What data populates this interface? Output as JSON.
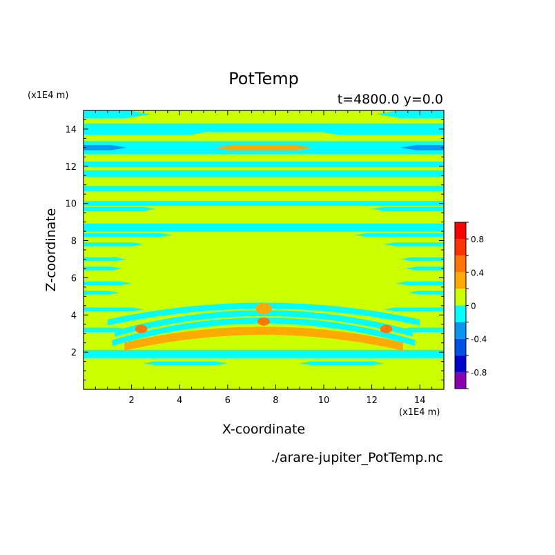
{
  "chart_data": {
    "type": "heatmap",
    "title": "PotTemp",
    "subtitle": "t=4800.0 y=0.0",
    "xlabel": "X-coordinate",
    "ylabel": "Z-coordinate",
    "x_unit": "(x1E4 m)",
    "y_unit": "(x1E4 m)",
    "footer": "./arare-jupiter_PotTemp.nc",
    "xlim": [
      0,
      15
    ],
    "ylim": [
      0,
      15
    ],
    "xticks": [
      2,
      4,
      6,
      8,
      10,
      12,
      14
    ],
    "yticks": [
      2,
      4,
      6,
      8,
      10,
      12,
      14
    ],
    "colorbar": {
      "levels": [
        -1.0,
        -0.8,
        -0.6,
        -0.4,
        -0.2,
        0.0,
        0.2,
        0.4,
        0.6,
        0.8,
        1.0
      ],
      "colors": [
        "#8800b0",
        "#0000c8",
        "#0050e6",
        "#0a96f0",
        "#00ffff",
        "#ccff00",
        "#ffaa00",
        "#ff7700",
        "#ff3300",
        "#ff0000",
        "#ffb0b0"
      ],
      "tick_labels": [
        "-0.8",
        "-0.4",
        "0",
        "0.4",
        "0.8"
      ],
      "tick_values": [
        -0.8,
        -0.4,
        0.0,
        0.4,
        0.8
      ]
    },
    "background_level": 0.0,
    "bands": [
      {
        "z": 14.8,
        "hw": 0.22,
        "v": -0.1,
        "xr": [
          [
            0,
            2.8
          ],
          [
            12.2,
            15
          ]
        ]
      },
      {
        "z": 14.0,
        "hw": 0.3,
        "v": -0.1,
        "xr": [
          [
            0,
            15
          ]
        ]
      },
      {
        "z": 13.6,
        "hw": 0.25,
        "v": 0.05,
        "xr": [
          [
            4,
            11
          ]
        ]
      },
      {
        "z": 13.0,
        "hw": 0.35,
        "v": -0.1,
        "xr": [
          [
            0,
            15
          ]
        ]
      },
      {
        "z": 13.0,
        "hw": 0.14,
        "v": -0.35,
        "xr": [
          [
            0,
            1.8
          ],
          [
            13.2,
            15
          ]
        ]
      },
      {
        "z": 13.0,
        "hw": 0.14,
        "v": 0.3,
        "xr": [
          [
            5.5,
            9.5
          ]
        ]
      },
      {
        "z": 12.1,
        "hw": 0.15,
        "v": -0.1,
        "xr": [
          [
            0,
            15
          ]
        ]
      },
      {
        "z": 11.6,
        "hw": 0.18,
        "v": -0.1,
        "xr": [
          [
            0,
            15
          ]
        ]
      },
      {
        "z": 10.8,
        "hw": 0.14,
        "v": -0.1,
        "xr": [
          [
            0,
            15
          ]
        ]
      },
      {
        "z": 10.0,
        "hw": 0.13,
        "v": -0.1,
        "xr": [
          [
            0,
            15
          ]
        ]
      },
      {
        "z": 9.7,
        "hw": 0.12,
        "v": -0.1,
        "xr": [
          [
            0,
            3
          ],
          [
            12,
            15
          ]
        ]
      },
      {
        "z": 8.7,
        "hw": 0.22,
        "v": -0.1,
        "xr": [
          [
            0,
            15
          ]
        ]
      },
      {
        "z": 8.3,
        "hw": 0.1,
        "v": -0.1,
        "xr": [
          [
            0,
            3.7
          ],
          [
            11.3,
            15
          ]
        ]
      },
      {
        "z": 7.8,
        "hw": 0.1,
        "v": -0.1,
        "xr": [
          [
            0,
            2.5
          ],
          [
            12.5,
            15
          ]
        ]
      },
      {
        "z": 7.0,
        "hw": 0.1,
        "v": -0.1,
        "xr": [
          [
            0,
            1.8
          ],
          [
            13.2,
            15
          ]
        ]
      },
      {
        "z": 6.5,
        "hw": 0.1,
        "v": -0.1,
        "xr": [
          [
            0,
            1.6
          ],
          [
            13.4,
            15
          ]
        ]
      },
      {
        "z": 5.7,
        "hw": 0.1,
        "v": -0.1,
        "xr": [
          [
            0,
            2
          ],
          [
            13,
            15
          ]
        ]
      },
      {
        "z": 5.2,
        "hw": 0.1,
        "v": -0.1,
        "xr": [
          [
            0,
            1.5
          ],
          [
            13.5,
            15
          ]
        ]
      },
      {
        "z": 4.3,
        "hw": 0.1,
        "v": -0.1,
        "xr": [
          [
            0,
            2.5
          ],
          [
            12.5,
            15
          ]
        ]
      },
      {
        "z": 3.2,
        "hw": 0.12,
        "v": -0.1,
        "xr": [
          [
            0,
            2
          ],
          [
            13,
            15
          ]
        ]
      },
      {
        "z": 1.9,
        "hw": 0.22,
        "v": -0.1,
        "xr": [
          [
            0,
            15
          ]
        ]
      },
      {
        "z": 1.4,
        "hw": 0.1,
        "v": -0.1,
        "xr": [
          [
            2.5,
            6
          ],
          [
            9,
            12.5
          ]
        ]
      }
    ],
    "arcs": [
      {
        "z_center": 3.15,
        "z_edge": 2.3,
        "r": 5.8,
        "v": 0.3
      },
      {
        "z_center": 3.7,
        "z_edge": 2.5,
        "r": 6.3,
        "v": -0.1
      },
      {
        "z_center": 4.1,
        "z_edge": 3.0,
        "r": 6.2,
        "v": -0.1
      },
      {
        "z_center": 4.5,
        "z_edge": 3.6,
        "r": 6.5,
        "v": -0.1
      }
    ],
    "hotspots": [
      {
        "x": 2.4,
        "z": 3.25,
        "v": 0.5
      },
      {
        "x": 12.6,
        "z": 3.25,
        "v": 0.5
      },
      {
        "x": 7.5,
        "z": 3.65,
        "v": 0.5
      },
      {
        "x": 7.5,
        "z": 4.35,
        "v": 0.3
      }
    ]
  }
}
